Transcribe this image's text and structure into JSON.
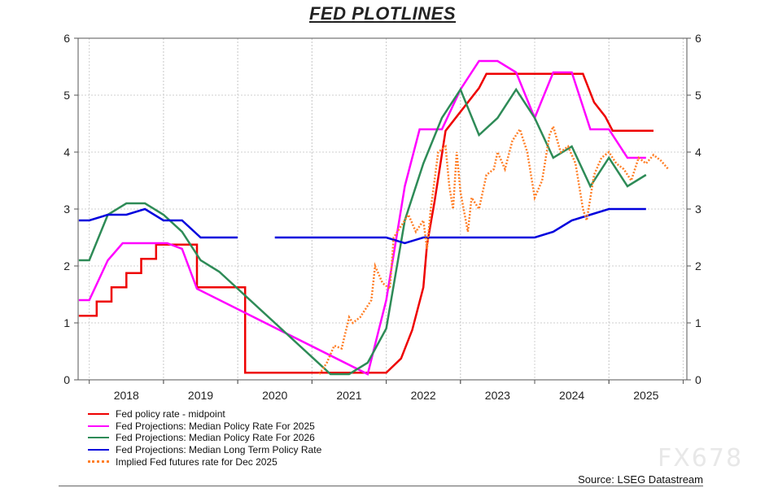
{
  "chart_data": {
    "type": "line",
    "title": "FED PLOTLINES",
    "ylim": [
      0,
      6
    ],
    "y_ticks": [
      "0",
      "1",
      "2",
      "3",
      "4",
      "5",
      "6"
    ],
    "xlim": [
      2017.35,
      2025.55
    ],
    "x_ticks": [
      "2018",
      "2019",
      "2020",
      "2021",
      "2022",
      "2023",
      "2024",
      "2025"
    ],
    "grid": true,
    "legend_position": "bottom-left",
    "source": "Source: LSEG Datastream",
    "series": [
      {
        "name": "Fed policy rate - midpoint",
        "color": "#ee0000",
        "style": "step",
        "points": [
          [
            2017.36,
            1.125
          ],
          [
            2017.6,
            1.125
          ],
          [
            2017.6,
            1.375
          ],
          [
            2017.8,
            1.375
          ],
          [
            2017.8,
            1.625
          ],
          [
            2018.0,
            1.625
          ],
          [
            2018.0,
            1.875
          ],
          [
            2018.2,
            1.875
          ],
          [
            2018.2,
            2.125
          ],
          [
            2018.4,
            2.125
          ],
          [
            2018.4,
            2.375
          ],
          [
            2018.95,
            2.375
          ],
          [
            2018.95,
            1.625
          ],
          [
            2019.6,
            1.625
          ],
          [
            2019.6,
            0.125
          ],
          [
            2021.5,
            0.125
          ],
          [
            2021.7,
            0.375
          ],
          [
            2021.85,
            0.875
          ],
          [
            2022.0,
            1.625
          ],
          [
            2022.05,
            2.375
          ],
          [
            2022.15,
            3.125
          ],
          [
            2022.3,
            4.375
          ],
          [
            2022.45,
            4.625
          ],
          [
            2022.6,
            4.875
          ],
          [
            2022.75,
            5.125
          ],
          [
            2022.85,
            5.375
          ],
          [
            2024.15,
            5.375
          ],
          [
            2024.3,
            4.875
          ],
          [
            2024.45,
            4.625
          ],
          [
            2024.55,
            4.375
          ],
          [
            2025.1,
            4.375
          ]
        ]
      },
      {
        "name": "Fed Projections: Median Policy Rate For 2025",
        "color": "#ff00ff",
        "points": [
          [
            2017.36,
            1.4
          ],
          [
            2017.5,
            1.4
          ],
          [
            2017.75,
            2.1
          ],
          [
            2017.95,
            2.4
          ],
          [
            2018.55,
            2.4
          ],
          [
            2018.75,
            2.3
          ],
          [
            2018.95,
            1.6
          ],
          [
            2021.25,
            0.1
          ],
          [
            2021.5,
            1.4
          ],
          [
            2021.75,
            3.4
          ],
          [
            2021.95,
            4.4
          ],
          [
            2022.25,
            4.4
          ],
          [
            2022.5,
            5.1
          ],
          [
            2022.75,
            5.6
          ],
          [
            2023.0,
            5.6
          ],
          [
            2023.25,
            5.4
          ],
          [
            2023.5,
            4.6
          ],
          [
            2023.75,
            5.4
          ],
          [
            2024.0,
            5.4
          ],
          [
            2024.25,
            4.4
          ],
          [
            2024.5,
            4.4
          ],
          [
            2024.75,
            3.9
          ],
          [
            2025.0,
            3.9
          ]
        ]
      },
      {
        "name": "Fed Projections: Median Policy Rate For 2026",
        "color": "#2e8b57",
        "points": [
          [
            2017.36,
            2.1
          ],
          [
            2017.5,
            2.1
          ],
          [
            2017.75,
            2.9
          ],
          [
            2018.0,
            3.1
          ],
          [
            2018.25,
            3.1
          ],
          [
            2018.5,
            2.9
          ],
          [
            2018.75,
            2.6
          ],
          [
            2019.0,
            2.1
          ],
          [
            2019.25,
            1.9
          ],
          [
            2019.5,
            1.6
          ],
          [
            2020.75,
            0.1
          ],
          [
            2021.0,
            0.1
          ],
          [
            2021.25,
            0.3
          ],
          [
            2021.5,
            0.9
          ],
          [
            2021.75,
            2.8
          ],
          [
            2022.0,
            3.8
          ],
          [
            2022.25,
            4.6
          ],
          [
            2022.5,
            5.1
          ],
          [
            2022.75,
            4.3
          ],
          [
            2023.0,
            4.6
          ],
          [
            2023.25,
            5.1
          ],
          [
            2023.5,
            4.6
          ],
          [
            2023.75,
            3.9
          ],
          [
            2024.0,
            4.1
          ],
          [
            2024.25,
            3.4
          ],
          [
            2024.5,
            3.9
          ],
          [
            2024.75,
            3.4
          ],
          [
            2025.0,
            3.6
          ]
        ]
      },
      {
        "name": "Fed Projections: Median Long Term Policy Rate",
        "color": "#0000dd",
        "points": [
          [
            2017.36,
            2.8
          ],
          [
            2017.5,
            2.8
          ],
          [
            2017.75,
            2.9
          ],
          [
            2018.0,
            2.9
          ],
          [
            2018.25,
            3.0
          ],
          [
            2018.5,
            2.8
          ],
          [
            2018.75,
            2.8
          ],
          [
            2019.0,
            2.5
          ],
          [
            2019.5,
            2.5
          ],
          [
            null,
            null
          ],
          [
            2020.0,
            2.5
          ],
          [
            2021.5,
            2.5
          ],
          [
            2021.75,
            2.4
          ],
          [
            2022.0,
            2.5
          ],
          [
            2023.5,
            2.5
          ],
          [
            2023.75,
            2.6
          ],
          [
            2024.0,
            2.8
          ],
          [
            2024.25,
            2.9
          ],
          [
            2024.5,
            3.0
          ],
          [
            2025.0,
            3.0
          ]
        ]
      },
      {
        "name": "Implied Fed futures rate for Dec 2025",
        "color": "#ff7f27",
        "dashed": true,
        "points": [
          [
            2020.6,
            0.1
          ],
          [
            2020.7,
            0.3
          ],
          [
            2020.8,
            0.6
          ],
          [
            2020.9,
            0.55
          ],
          [
            2021.0,
            1.1
          ],
          [
            2021.05,
            1.0
          ],
          [
            2021.15,
            1.1
          ],
          [
            2021.3,
            1.4
          ],
          [
            2021.35,
            2.0
          ],
          [
            2021.45,
            1.7
          ],
          [
            2021.55,
            1.6
          ],
          [
            2021.6,
            2.5
          ],
          [
            2021.7,
            2.7
          ],
          [
            2021.8,
            2.9
          ],
          [
            2021.9,
            2.6
          ],
          [
            2022.0,
            2.8
          ],
          [
            2022.05,
            2.3
          ],
          [
            2022.1,
            3.0
          ],
          [
            2022.15,
            3.5
          ],
          [
            2022.2,
            4.0
          ],
          [
            2022.3,
            4.1
          ],
          [
            2022.35,
            3.4
          ],
          [
            2022.4,
            3.0
          ],
          [
            2022.45,
            4.0
          ],
          [
            2022.5,
            3.3
          ],
          [
            2022.6,
            2.6
          ],
          [
            2022.65,
            3.2
          ],
          [
            2022.75,
            3.0
          ],
          [
            2022.85,
            3.6
          ],
          [
            2022.95,
            3.7
          ],
          [
            2023.0,
            4.0
          ],
          [
            2023.1,
            3.7
          ],
          [
            2023.2,
            4.2
          ],
          [
            2023.3,
            4.4
          ],
          [
            2023.4,
            4.0
          ],
          [
            2023.5,
            3.2
          ],
          [
            2023.6,
            3.5
          ],
          [
            2023.7,
            4.3
          ],
          [
            2023.75,
            4.45
          ],
          [
            2023.85,
            4.0
          ],
          [
            2023.95,
            4.1
          ],
          [
            2024.05,
            3.8
          ],
          [
            2024.15,
            3.0
          ],
          [
            2024.2,
            2.8
          ],
          [
            2024.3,
            3.6
          ],
          [
            2024.4,
            3.9
          ],
          [
            2024.5,
            4.0
          ],
          [
            2024.6,
            3.8
          ],
          [
            2024.7,
            3.7
          ],
          [
            2024.8,
            3.5
          ],
          [
            2024.9,
            3.9
          ],
          [
            2025.0,
            3.8
          ],
          [
            2025.1,
            3.95
          ],
          [
            2025.2,
            3.85
          ],
          [
            2025.3,
            3.7
          ]
        ]
      }
    ]
  },
  "watermark": "FX678"
}
